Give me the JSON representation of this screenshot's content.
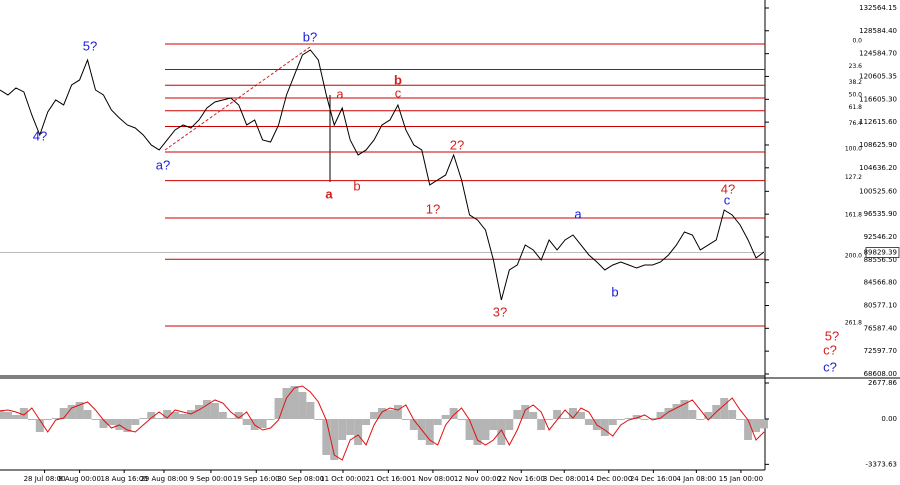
{
  "chart_data": [
    {
      "type": "line",
      "color": "#000000",
      "level_color": "#cc0000",
      "values": [
        118235,
        117362,
        118585,
        117886,
        113867,
        110372,
        114391,
        116488,
        115614,
        119109,
        119983,
        123478,
        118235,
        117362,
        114741,
        113343,
        112119,
        111595,
        110372,
        108625,
        107751,
        109498,
        111246,
        112119,
        111595,
        112993,
        115090,
        116138,
        116488,
        116837,
        115614,
        112119,
        112993,
        109498,
        109149,
        112119,
        117362,
        120856,
        124351,
        125225,
        123478,
        117362,
        112119,
        115090,
        109498,
        106877,
        107751,
        109498,
        112119,
        112993,
        115614,
        111246,
        108625,
        107751,
        101635,
        102509,
        103382,
        106877,
        102509,
        96393,
        95519,
        93772,
        88529,
        81540,
        86782,
        87656,
        91151,
        90277,
        88529,
        92024,
        90277,
        92024,
        92898,
        91151,
        89403,
        88180,
        86782,
        87656,
        88180,
        87656,
        87132,
        87656,
        87656,
        88180,
        89403,
        91151,
        93422,
        92898,
        90277,
        91151,
        92024,
        97267,
        96393,
        94645,
        92024,
        88879,
        89927
      ],
      "xlim": [
        0,
        96
      ],
      "xticks": [
        {
          "value": 5.6,
          "label": "28 Jul 08:00"
        },
        {
          "value": 10,
          "label": "8 Aug 00:00"
        },
        {
          "value": 15.6,
          "label": "18 Aug 16:00"
        },
        {
          "value": 20.6,
          "label": "29 Aug 08:00"
        },
        {
          "value": 26.5,
          "label": "9 Sep 00:00"
        },
        {
          "value": 32.2,
          "label": "19 Sep 16:00"
        },
        {
          "value": 37.8,
          "label": "30 Sep 08:00"
        },
        {
          "value": 43.1,
          "label": "11 Oct 00:00"
        },
        {
          "value": 48.8,
          "label": "21 Oct 16:00"
        },
        {
          "value": 54.4,
          "label": "1 Nov 08:00"
        },
        {
          "value": 60,
          "label": "12 Nov 00:00"
        },
        {
          "value": 65.5,
          "label": "22 Nov 16:00"
        },
        {
          "value": 70.9,
          "label": "3 Dec 08:00"
        },
        {
          "value": 76.5,
          "label": "14 Dec 00:00"
        },
        {
          "value": 82.1,
          "label": "24 Dec 16:00"
        },
        {
          "value": 87.5,
          "label": "4 Jan 08:00"
        },
        {
          "value": 93.1,
          "label": "15 Jan 00:00"
        }
      ],
      "ylim": [
        68080,
        133960
      ],
      "yticks": [
        {
          "value": 132564.15,
          "label": "132564.15"
        },
        {
          "value": 128584.4,
          "label": "128584.40"
        },
        {
          "value": 124584.7,
          "label": "124584.70"
        },
        {
          "value": 120605.35,
          "label": "120605.35"
        },
        {
          "value": 116605.3,
          "label": "116605.30"
        },
        {
          "value": 112615.6,
          "label": "112615.60"
        },
        {
          "value": 108625.9,
          "label": "108625.90"
        },
        {
          "value": 104636.2,
          "label": "104636.20"
        },
        {
          "value": 100525.6,
          "label": "100525.60"
        },
        {
          "value": 96535.9,
          "label": "96535.90"
        },
        {
          "value": 92546.2,
          "label": "92546.20"
        },
        {
          "value": 88556.5,
          "label": "88556.50"
        },
        {
          "value": 84566.8,
          "label": "84566.80"
        },
        {
          "value": 80577.1,
          "label": "80577.10"
        },
        {
          "value": 76587.4,
          "label": "76587.40"
        },
        {
          "value": 72597.7,
          "label": "72597.70"
        },
        {
          "value": 68608,
          "label": "68608.00"
        }
      ],
      "last_price": 89829.39,
      "levels": [
        {
          "value": 126270,
          "label": "0.0"
        },
        {
          "value": 121817,
          "label": "23.6"
        },
        {
          "value": 119062,
          "label": "38.2"
        },
        {
          "value": 116835,
          "label": "50.0"
        },
        {
          "value": 114608,
          "label": "61.8"
        },
        {
          "value": 111853,
          "label": "76.4"
        },
        {
          "value": 107400,
          "label": "100.0"
        },
        {
          "value": 102400,
          "label": "127.2"
        },
        {
          "value": 95869,
          "label": "161.8"
        },
        {
          "value": 88660,
          "label": "200.0"
        },
        {
          "value": 77000,
          "label": "261.8"
        }
      ],
      "annotations": [
        "4?",
        "5?",
        "a?",
        "b?",
        "a",
        "b",
        "c",
        "c?",
        "a",
        "a",
        "b",
        "b",
        "c",
        "1?",
        "2?",
        "3?",
        "4?",
        "5?",
        "c?"
      ]
    },
    {
      "type": "bar",
      "color": "#b4b4b4",
      "signal_color": "#e01010",
      "values": [
        670,
        521,
        298,
        818,
        -74,
        -967,
        -74,
        74,
        818,
        1042,
        1265,
        670,
        -74,
        -670,
        -446,
        -818,
        -967,
        -446,
        74,
        521,
        74,
        670,
        521,
        372,
        670,
        1042,
        1414,
        1190,
        521,
        74,
        521,
        -446,
        -818,
        -670,
        -74,
        1562,
        2306,
        2455,
        2009,
        1265,
        -74,
        -2678,
        -3050,
        -1562,
        -1190,
        -1934,
        -446,
        521,
        818,
        670,
        1042,
        -74,
        -818,
        -1562,
        -1934,
        -446,
        298,
        818,
        -74,
        -1562,
        -1934,
        -1562,
        -818,
        -1934,
        -818,
        670,
        1042,
        521,
        -818,
        -74,
        670,
        74,
        818,
        521,
        -446,
        -818,
        -1265,
        -446,
        -74,
        74,
        298,
        -74,
        74,
        521,
        818,
        1116,
        1414,
        670,
        -74,
        521,
        1042,
        1562,
        670,
        -74,
        -1562,
        -967,
        -700
      ],
      "signal": [
        600,
        670,
        521,
        298,
        818,
        -74,
        -967,
        -74,
        74,
        818,
        1042,
        1265,
        670,
        -74,
        -670,
        -446,
        -818,
        -967,
        -446,
        74,
        521,
        74,
        670,
        521,
        372,
        670,
        1042,
        1414,
        1190,
        521,
        74,
        521,
        -446,
        -818,
        -670,
        -74,
        1562,
        2306,
        2455,
        2009,
        1265,
        -74,
        -2678,
        -3050,
        -1562,
        -1190,
        -1934,
        -446,
        521,
        818,
        670,
        1042,
        -74,
        -818,
        -1562,
        -1934,
        -446,
        298,
        818,
        -74,
        -1562,
        -1934,
        -1562,
        -818,
        -1934,
        -818,
        670,
        1042,
        521,
        -818,
        -74,
        670,
        74,
        818,
        521,
        -446,
        -818,
        -1265,
        -446,
        -74,
        74,
        298,
        -74,
        74,
        521,
        818,
        1116,
        1414,
        670,
        -74,
        521,
        1042,
        1562,
        670,
        -74,
        -1562,
        -967
      ],
      "xlim": [
        0,
        96
      ],
      "ylim": [
        -3794,
        3124
      ],
      "yticks": [
        2677.86,
        {
          "value": 0,
          "label": "0.00"
        },
        -3373.63
      ]
    }
  ]
}
